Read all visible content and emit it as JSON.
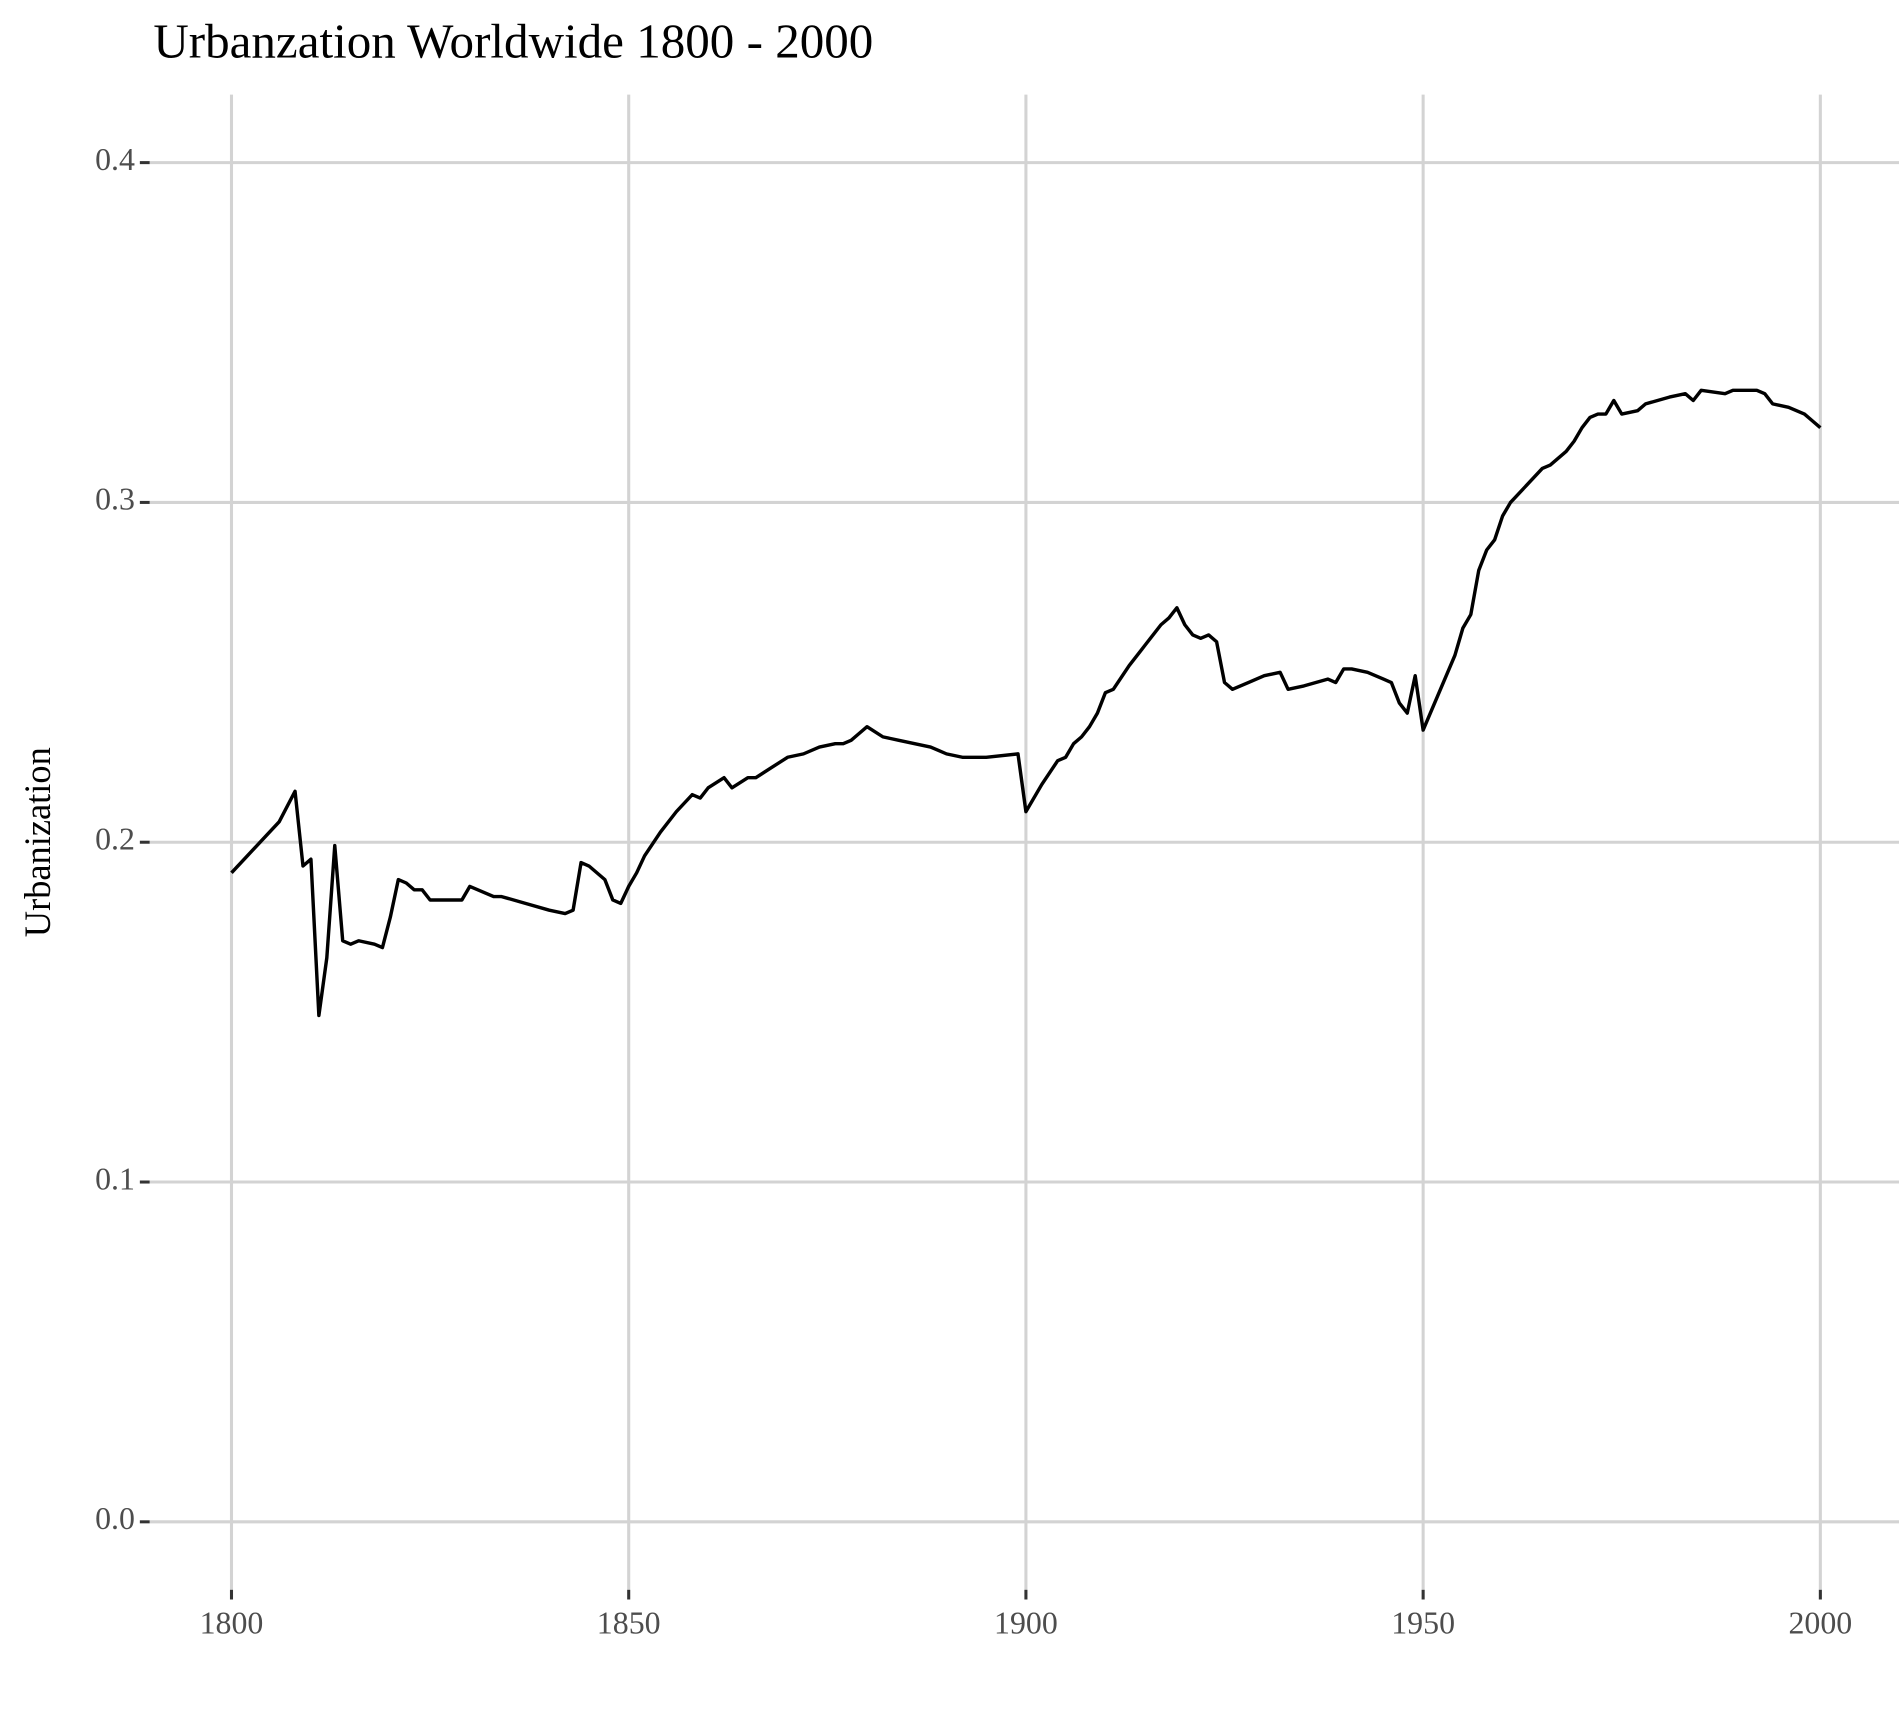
{
  "chart_data": {
    "type": "line",
    "title": "Urbanzation Worldwide 1800 - 2000",
    "y_label": "Urbanization",
    "color": "#000000",
    "grid": true,
    "xlim": [
      1789.7,
      2009.9
    ],
    "ylim": [
      -0.02,
      0.42
    ],
    "xticks": [
      1800,
      1850,
      1900,
      1950,
      2000
    ],
    "yticks": [
      {
        "value": 0,
        "label": "0.0"
      },
      0.1,
      0.2,
      0.3,
      0.4
    ],
    "x": [
      1800,
      1802,
      1804,
      1806,
      1808,
      1809,
      1810,
      1811,
      1812,
      1813,
      1814,
      1815,
      1816,
      1818,
      1819,
      1820,
      1821,
      1822,
      1823,
      1824,
      1825,
      1829,
      1830,
      1832,
      1833,
      1834,
      1837,
      1840,
      1842,
      1843,
      1844,
      1845,
      1847,
      1848,
      1849,
      1850,
      1851,
      1852,
      1854,
      1856,
      1858,
      1859,
      1860,
      1862,
      1863,
      1865,
      1866,
      1868,
      1870,
      1872,
      1874,
      1876,
      1877,
      1878,
      1879,
      1880,
      1882,
      1884,
      1886,
      1888,
      1889,
      1890,
      1892,
      1895,
      1899,
      1900,
      1902,
      1904,
      1905,
      1906,
      1907,
      1908,
      1909,
      1910,
      1911,
      1913,
      1915,
      1917,
      1918,
      1919,
      1920,
      1921,
      1922,
      1923,
      1924,
      1925,
      1926,
      1928,
      1930,
      1932,
      1933,
      1935,
      1938,
      1939,
      1940,
      1941,
      1943,
      1944,
      1945,
      1946,
      1947,
      1948,
      1949,
      1950,
      1952,
      1954,
      1955,
      1956,
      1957,
      1958,
      1959,
      1960,
      1961,
      1963,
      1965,
      1966,
      1968,
      1969,
      1970,
      1971,
      1972,
      1973,
      1974,
      1975,
      1977,
      1978,
      1981,
      1983,
      1984,
      1985,
      1988,
      1989,
      1992,
      1993,
      1994,
      1996,
      1998,
      1999,
      2000
    ],
    "values": [
      0.191,
      0.196,
      0.201,
      0.206,
      0.215,
      0.193,
      0.195,
      0.149,
      0.166,
      0.199,
      0.171,
      0.17,
      0.171,
      0.17,
      0.169,
      0.178,
      0.189,
      0.188,
      0.186,
      0.186,
      0.183,
      0.183,
      0.187,
      0.185,
      0.184,
      0.184,
      0.182,
      0.18,
      0.179,
      0.18,
      0.194,
      0.193,
      0.189,
      0.183,
      0.182,
      0.187,
      0.191,
      0.196,
      0.203,
      0.209,
      0.214,
      0.213,
      0.216,
      0.219,
      0.216,
      0.219,
      0.219,
      0.222,
      0.225,
      0.226,
      0.228,
      0.229,
      0.229,
      0.23,
      0.232,
      0.234,
      0.231,
      0.23,
      0.229,
      0.228,
      0.227,
      0.226,
      0.225,
      0.225,
      0.226,
      0.209,
      0.217,
      0.224,
      0.225,
      0.229,
      0.231,
      0.234,
      0.238,
      0.244,
      0.245,
      0.252,
      0.258,
      0.264,
      0.266,
      0.269,
      0.264,
      0.261,
      0.26,
      0.261,
      0.259,
      0.247,
      0.245,
      0.247,
      0.249,
      0.25,
      0.245,
      0.246,
      0.248,
      0.247,
      0.251,
      0.251,
      0.25,
      0.249,
      0.248,
      0.247,
      0.241,
      0.238,
      0.249,
      0.233,
      0.244,
      0.255,
      0.263,
      0.267,
      0.28,
      0.286,
      0.289,
      0.296,
      0.3,
      0.305,
      0.31,
      0.311,
      0.315,
      0.318,
      0.322,
      0.325,
      0.326,
      0.326,
      0.33,
      0.326,
      0.327,
      0.329,
      0.331,
      0.332,
      0.33,
      0.333,
      0.332,
      0.333,
      0.333,
      0.332,
      0.329,
      0.328,
      0.326,
      0.324,
      0.322
    ]
  }
}
